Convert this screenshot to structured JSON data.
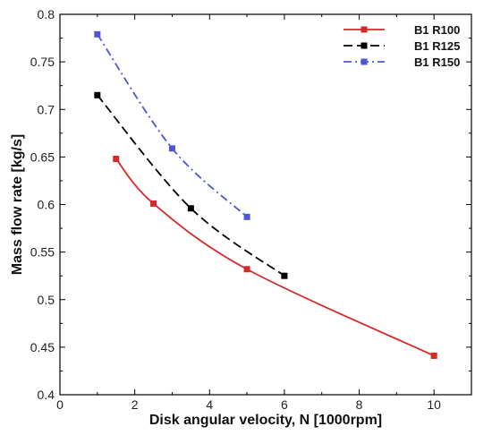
{
  "chart_data": {
    "type": "line",
    "title": "",
    "xlabel": "Disk angular velocity, N [1000rpm]",
    "ylabel": "Mass flow rate [kg/s]",
    "xlim": [
      0,
      11
    ],
    "ylim": [
      0.4,
      0.8
    ],
    "xticks": [
      0,
      2,
      4,
      6,
      8,
      10
    ],
    "yticks": [
      0.4,
      0.45,
      0.5,
      0.55,
      0.6,
      0.65,
      0.7,
      0.75,
      0.8
    ],
    "x_tick_labels": [
      "0",
      "2",
      "4",
      "6",
      "8",
      "10"
    ],
    "y_tick_labels": [
      "0.4",
      "0.45",
      "0.5",
      "0.55",
      "0.6",
      "0.65",
      "0.7",
      "0.75",
      "0.8"
    ],
    "grid": false,
    "legend_position": "top-right",
    "series": [
      {
        "name": "B1 R100",
        "color": "#d42a2a",
        "line_style": "solid",
        "marker": "square",
        "x": [
          1.5,
          2.5,
          5,
          10
        ],
        "y": [
          0.648,
          0.601,
          0.532,
          0.441
        ]
      },
      {
        "name": "B1 R125",
        "color": "#000000",
        "line_style": "dashed",
        "marker": "square",
        "x": [
          1,
          3.5,
          6
        ],
        "y": [
          0.715,
          0.596,
          0.525
        ]
      },
      {
        "name": "B1 R150",
        "color": "#4d55d8",
        "line_style": "dash-dot",
        "marker": "square",
        "x": [
          1,
          3,
          5
        ],
        "y": [
          0.779,
          0.659,
          0.587
        ]
      }
    ]
  }
}
